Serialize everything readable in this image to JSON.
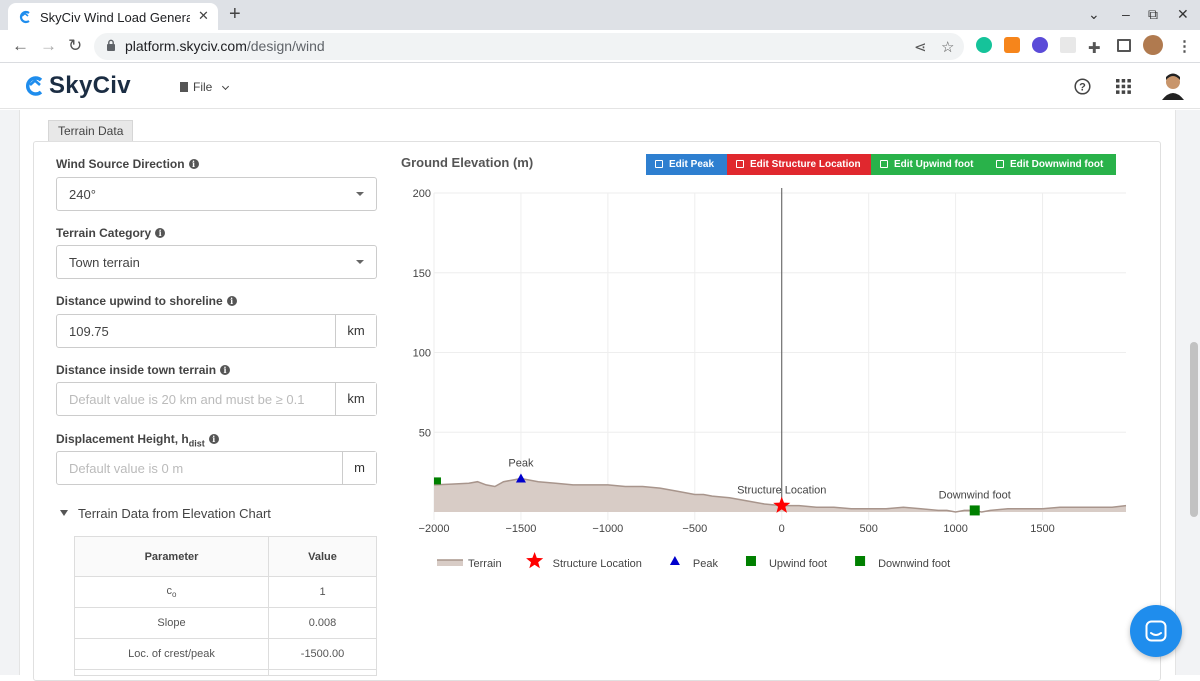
{
  "browser": {
    "tab_title": "SkyCiv Wind Load Genera",
    "tab_close": "✕",
    "new_tab": "+",
    "url_host": "platform.skyciv.com",
    "url_path": "/design/wind",
    "window_controls": [
      "⌄",
      "–",
      "⧉",
      "✕"
    ]
  },
  "app": {
    "logo": "SkyCiv",
    "file_menu": "File",
    "brand_color": "#1f8ded"
  },
  "section_tab": "Terrain Data",
  "form": {
    "wind_source_direction": {
      "label": "Wind Source Direction",
      "value": "240°"
    },
    "terrain_category": {
      "label": "Terrain Category",
      "value": "Town terrain"
    },
    "distance_upwind": {
      "label": "Distance upwind to shoreline",
      "value": "109.75",
      "unit": "km"
    },
    "distance_town": {
      "label": "Distance inside town terrain",
      "placeholder": "Default value is 20 km and must be ≥ 0.1",
      "unit": "km"
    },
    "displacement_height": {
      "label": "Displacement Height, h",
      "label_sub": "dist",
      "placeholder": "Default value is 0 m",
      "unit": "m"
    }
  },
  "elevation_toggle": "Terrain Data from Elevation Chart",
  "params_table": {
    "headers": [
      "Parameter",
      "Value"
    ],
    "rows": [
      {
        "param": "c",
        "param_sub": "o",
        "value": "1"
      },
      {
        "param": "Slope",
        "value": "0.008"
      },
      {
        "param": "Loc. of crest/peak",
        "value": "-1500.00"
      }
    ]
  },
  "chart_header": {
    "title": "Ground Elevation (m)",
    "buttons": [
      {
        "label": "Edit Peak",
        "color": "#2e7fd0"
      },
      {
        "label": "Edit Structure Location",
        "color": "#e0282e"
      },
      {
        "label": "Edit Upwind foot",
        "color": "#29b24a"
      },
      {
        "label": "Edit Downwind foot",
        "color": "#29b24a"
      }
    ]
  },
  "chart_data": {
    "type": "area",
    "xlim": [
      -2000,
      1980
    ],
    "ylim": [
      -5,
      200
    ],
    "x_ticks": [
      -2000,
      -1500,
      -1000,
      -500,
      0,
      500,
      1000,
      1500
    ],
    "x_tick_labels": [
      "−2000",
      "−1500",
      "−1000",
      "−500",
      "0",
      "500",
      "1000",
      "1500"
    ],
    "y_ticks": [
      50,
      100,
      150,
      200
    ],
    "y_tick_labels": [
      "50",
      "100",
      "150",
      "200"
    ],
    "grid": true,
    "terrain": {
      "name": "Terrain",
      "color": "#a8958c",
      "fill": "#d8ccc6",
      "x": [
        -2000,
        -1900,
        -1800,
        -1750,
        -1700,
        -1650,
        -1600,
        -1550,
        -1500,
        -1450,
        -1400,
        -1300,
        -1200,
        -1100,
        -1000,
        -900,
        -800,
        -700,
        -600,
        -500,
        -450,
        -400,
        -300,
        -200,
        -100,
        0,
        100,
        200,
        300,
        400,
        500,
        600,
        700,
        800,
        900,
        950,
        1000,
        1050,
        1100,
        1150,
        1200,
        1300,
        1400,
        1500,
        1600,
        1700,
        1800,
        1900,
        1980
      ],
      "y": [
        17,
        17.5,
        18,
        19,
        17,
        16,
        19,
        20,
        21,
        20,
        19,
        18,
        17,
        17,
        17,
        16,
        16,
        15,
        13,
        11,
        11,
        10,
        9,
        7,
        5,
        4,
        4,
        3,
        3,
        2,
        2,
        2,
        3,
        2,
        1,
        1,
        0,
        1,
        1,
        0,
        1,
        2,
        2,
        2,
        3,
        3,
        3,
        3,
        4
      ]
    },
    "markers": [
      {
        "name": "Structure Location",
        "label": "Structure Location",
        "x": 0,
        "y": 4,
        "symbol": "star",
        "color": "#ff0000"
      },
      {
        "name": "Peak",
        "label": "Peak",
        "x": -1500,
        "y": 21,
        "symbol": "triangle",
        "color": "#0000cc"
      },
      {
        "name": "Upwind foot",
        "label": "",
        "x": -1980,
        "y": 17,
        "symbol": "square",
        "color": "#008000"
      },
      {
        "name": "Downwind foot",
        "label": "Downwind foot",
        "x": 1110,
        "y": 1,
        "symbol": "square",
        "color": "#008000"
      }
    ],
    "vertical_line_x": 0,
    "legend_position": "bottom",
    "legend": [
      "Terrain",
      "Structure Location",
      "Peak",
      "Upwind foot",
      "Downwind foot"
    ]
  }
}
